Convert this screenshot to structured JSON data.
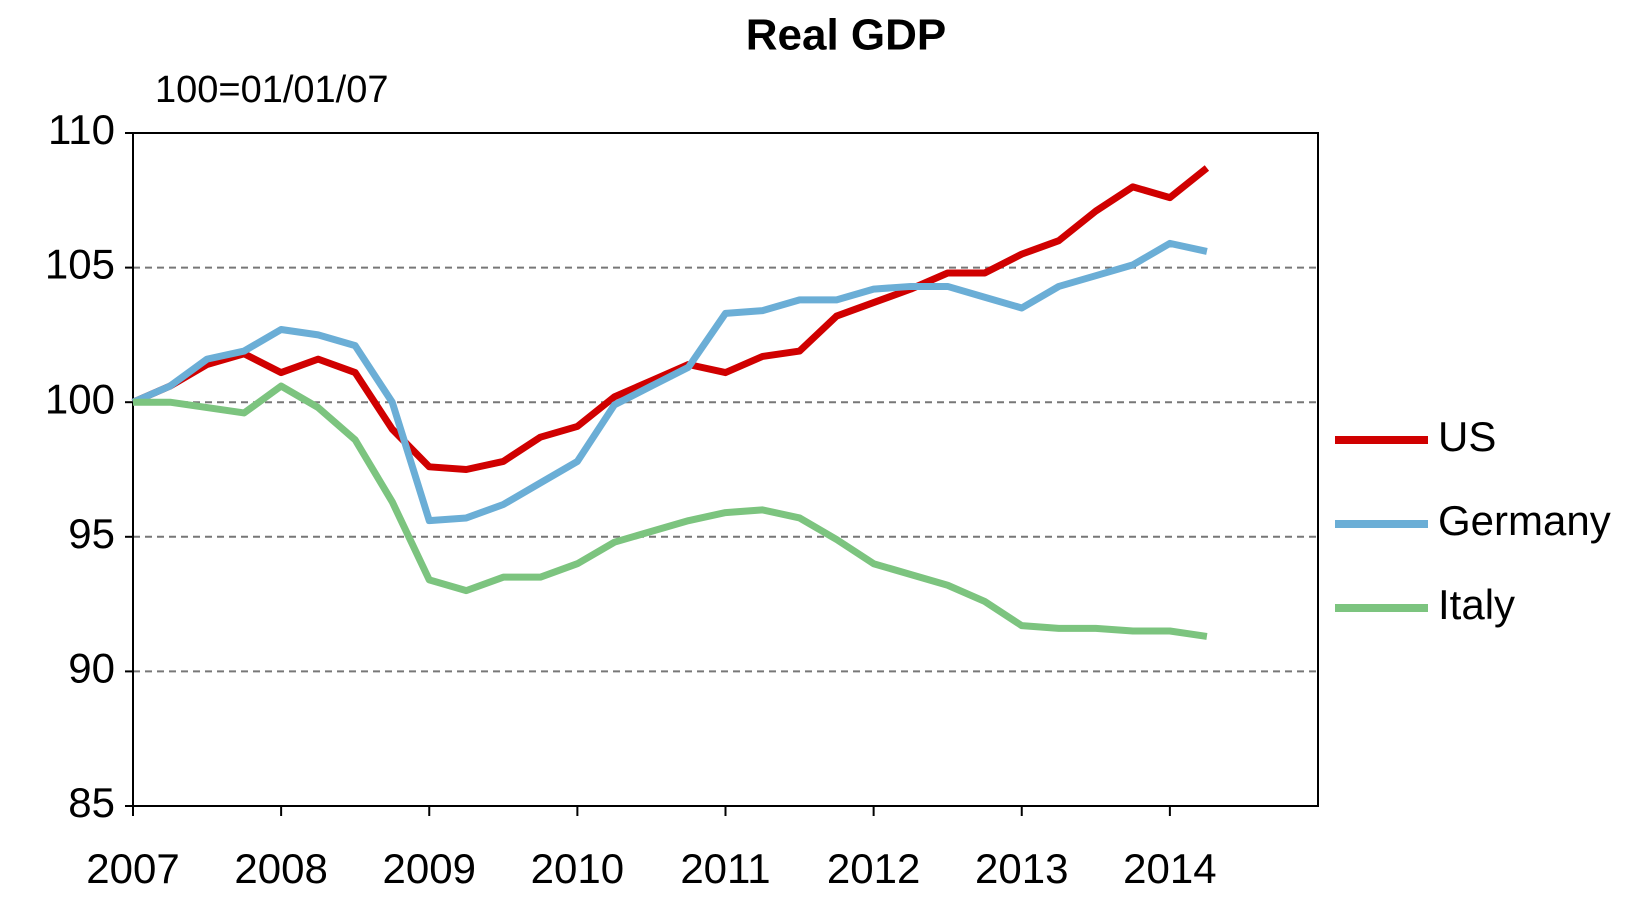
{
  "chart_data": {
    "type": "line",
    "title": "Real GDP",
    "subtitle": "100=01/01/07",
    "x": [
      2007,
      2007.25,
      2007.5,
      2007.75,
      2008,
      2008.25,
      2008.5,
      2008.75,
      2009,
      2009.25,
      2009.5,
      2009.75,
      2010,
      2010.25,
      2010.5,
      2010.75,
      2011,
      2011.25,
      2011.5,
      2011.75,
      2012,
      2012.25,
      2012.5,
      2012.75,
      2013,
      2013.25,
      2013.5,
      2013.75,
      2014,
      2014.25
    ],
    "series": [
      {
        "name": "US",
        "color": "#d00000",
        "values": [
          100,
          100.6,
          101.4,
          101.8,
          101.1,
          101.6,
          101.1,
          99.0,
          97.6,
          97.5,
          97.8,
          98.7,
          99.1,
          100.2,
          100.8,
          101.4,
          101.1,
          101.7,
          101.9,
          103.2,
          103.7,
          104.2,
          104.8,
          104.8,
          105.5,
          106.0,
          107.1,
          108.0,
          107.6,
          108.7
        ]
      },
      {
        "name": "Germany",
        "color": "#6baed6",
        "values": [
          100,
          100.6,
          101.6,
          101.9,
          102.7,
          102.5,
          102.1,
          100,
          95.6,
          95.7,
          96.2,
          97.0,
          97.8,
          99.9,
          100.6,
          101.3,
          103.3,
          103.4,
          103.8,
          103.8,
          104.2,
          104.3,
          104.3,
          103.9,
          103.5,
          104.3,
          104.7,
          105.1,
          105.9,
          105.6
        ]
      },
      {
        "name": "Italy",
        "color": "#7cc47f",
        "values": [
          100,
          100,
          99.8,
          99.6,
          100.6,
          99.8,
          98.6,
          96.3,
          93.4,
          93.0,
          93.5,
          93.5,
          94.0,
          94.8,
          95.2,
          95.6,
          95.9,
          96.0,
          95.7,
          94.9,
          94.0,
          93.6,
          93.2,
          92.6,
          91.7,
          91.6,
          91.6,
          91.5,
          91.5,
          91.3
        ]
      }
    ],
    "xlim": [
      2007,
      2015
    ],
    "xticks": [
      2007,
      2008,
      2009,
      2010,
      2011,
      2012,
      2013,
      2014
    ],
    "ylim": [
      85,
      110
    ],
    "yticks": [
      85,
      90,
      95,
      100,
      105,
      110
    ],
    "grid": true,
    "legend": "right"
  }
}
